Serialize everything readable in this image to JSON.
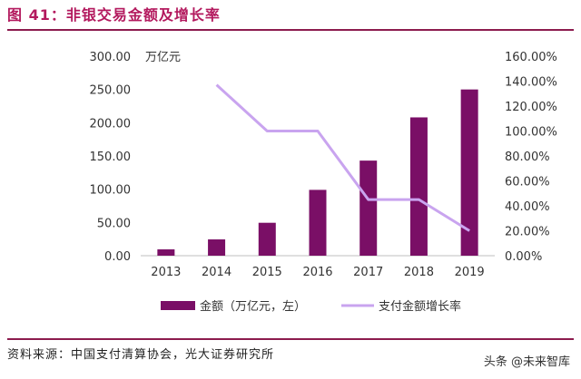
{
  "figure": {
    "title": "图 41：非银交易金额及增长率",
    "source": "资料来源：中国支付清算协会，光大证券研究所",
    "watermark": "头条 @未来智库"
  },
  "chart_data": {
    "type": "bar",
    "categories": [
      "2013",
      "2014",
      "2015",
      "2016",
      "2017",
      "2018",
      "2019"
    ],
    "series": [
      {
        "name": "金额（万亿元，左）",
        "type": "bar",
        "axis": "left",
        "color": "#7a0f66",
        "values": [
          9.5,
          24.5,
          49.5,
          99,
          143,
          208,
          250
        ]
      },
      {
        "name": "支付金额增长率",
        "type": "line",
        "axis": "right",
        "color": "#c9a4ef",
        "values": [
          null,
          1.37,
          1.0,
          1.0,
          0.45,
          0.45,
          0.2
        ]
      }
    ],
    "left_axis": {
      "unit_label": "万亿元",
      "ylim": [
        0,
        300
      ],
      "ticks": [
        "0.00",
        "50.00",
        "100.00",
        "150.00",
        "200.00",
        "250.00",
        "300.00"
      ]
    },
    "right_axis": {
      "ylim": [
        0,
        1.6
      ],
      "ticks": [
        "0.00%",
        "20.00%",
        "40.00%",
        "60.00%",
        "80.00%",
        "100.00%",
        "120.00%",
        "140.00%",
        "160.00%"
      ]
    },
    "grid": false,
    "legend_position": "bottom"
  }
}
